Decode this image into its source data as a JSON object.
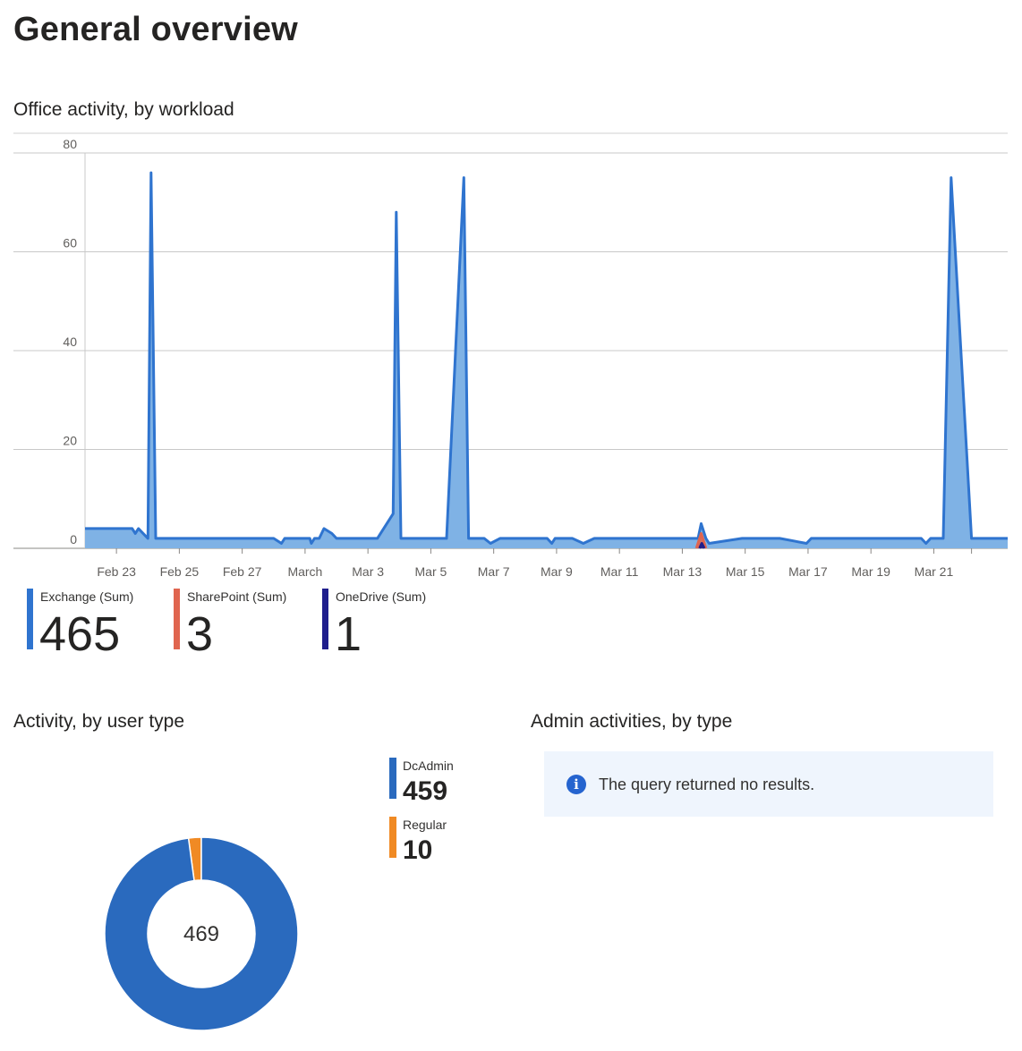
{
  "page": {
    "title": "General overview"
  },
  "office_activity": {
    "title": "Office activity, by workload",
    "legend": [
      {
        "label": "Exchange (Sum)",
        "value": "465",
        "color": "#2f74cf"
      },
      {
        "label": "SharePoint (Sum)",
        "value": "3",
        "color": "#e0654f"
      },
      {
        "label": "OneDrive (Sum)",
        "value": "1",
        "color": "#1f1e8c"
      }
    ]
  },
  "user_type": {
    "title": "Activity, by user type",
    "total": "469",
    "legend": [
      {
        "label": "DcAdmin",
        "value": "459",
        "color": "#2a6abe"
      },
      {
        "label": "Regular",
        "value": "10",
        "color": "#f08a24"
      }
    ]
  },
  "admin_activities": {
    "title": "Admin activities, by type",
    "message": "The query returned no results.",
    "icon": "info-icon"
  },
  "chart_data": [
    {
      "type": "area",
      "title": "Office activity, by workload",
      "xlabel": "",
      "ylabel": "",
      "ylim": [
        0,
        80
      ],
      "yticks": [
        0,
        20,
        40,
        60,
        80
      ],
      "grid": true,
      "legend_placement": "bottom",
      "xlim": [
        0,
        29.35
      ],
      "xticks": [
        {
          "x": 1,
          "label": "Feb 23"
        },
        {
          "x": 3,
          "label": "Feb 25"
        },
        {
          "x": 5,
          "label": "Feb 27"
        },
        {
          "x": 7,
          "label": "March"
        },
        {
          "x": 9,
          "label": "Mar 3"
        },
        {
          "x": 11,
          "label": "Mar 5"
        },
        {
          "x": 13,
          "label": "Mar 7"
        },
        {
          "x": 15,
          "label": "Mar 9"
        },
        {
          "x": 17,
          "label": "Mar 11"
        },
        {
          "x": 19,
          "label": "Mar 13"
        },
        {
          "x": 21,
          "label": "Mar 15"
        },
        {
          "x": 23,
          "label": "Mar 17"
        },
        {
          "x": 25,
          "label": "Mar 19"
        },
        {
          "x": 27,
          "label": "Mar 21"
        }
      ],
      "series": [
        {
          "name": "Exchange (Sum)",
          "color": "#2f74cf",
          "fill": "#7fb2e5",
          "points": [
            [
              0,
              4
            ],
            [
              1.5,
              4
            ],
            [
              1.6,
              3
            ],
            [
              1.7,
              4
            ],
            [
              2.0,
              2
            ],
            [
              2.1,
              76
            ],
            [
              2.25,
              2
            ],
            [
              6.0,
              2
            ],
            [
              6.25,
              1
            ],
            [
              6.35,
              2
            ],
            [
              7.15,
              2
            ],
            [
              7.2,
              1
            ],
            [
              7.3,
              2
            ],
            [
              7.45,
              2
            ],
            [
              7.6,
              4
            ],
            [
              7.85,
              3
            ],
            [
              8.0,
              2
            ],
            [
              9.3,
              2
            ],
            [
              9.8,
              7
            ],
            [
              9.9,
              68
            ],
            [
              10.05,
              2
            ],
            [
              11.5,
              2
            ],
            [
              12.05,
              75
            ],
            [
              12.2,
              2
            ],
            [
              12.7,
              2
            ],
            [
              12.9,
              1
            ],
            [
              13.2,
              2
            ],
            [
              14.7,
              2
            ],
            [
              14.85,
              1
            ],
            [
              14.95,
              2
            ],
            [
              15.5,
              2
            ],
            [
              15.85,
              1
            ],
            [
              16.2,
              2
            ],
            [
              19.5,
              2
            ],
            [
              19.6,
              5
            ],
            [
              19.75,
              2
            ],
            [
              19.85,
              1
            ],
            [
              20.9,
              2
            ],
            [
              22.1,
              2
            ],
            [
              22.95,
              1
            ],
            [
              23.1,
              2
            ],
            [
              26.6,
              2
            ],
            [
              26.75,
              1
            ],
            [
              26.9,
              2
            ],
            [
              27.3,
              2
            ],
            [
              27.55,
              75
            ],
            [
              28.2,
              2
            ],
            [
              29.35,
              2
            ]
          ]
        },
        {
          "name": "SharePoint (Sum)",
          "color": "#e0654f",
          "fill": "#e0654f",
          "points": [
            [
              19.45,
              0
            ],
            [
              19.6,
              3
            ],
            [
              19.75,
              0
            ]
          ]
        },
        {
          "name": "OneDrive (Sum)",
          "color": "#1f1e8c",
          "fill": "#1f1e8c",
          "points": [
            [
              19.55,
              0
            ],
            [
              19.62,
              1
            ],
            [
              19.7,
              0
            ]
          ]
        }
      ]
    },
    {
      "type": "pie",
      "title": "Activity, by user type",
      "center_label": "469",
      "legend_placement": "right",
      "slices": [
        {
          "label": "DcAdmin",
          "value": 459,
          "color": "#2a6abe"
        },
        {
          "label": "Regular",
          "value": 10,
          "color": "#f08a24"
        }
      ]
    }
  ]
}
